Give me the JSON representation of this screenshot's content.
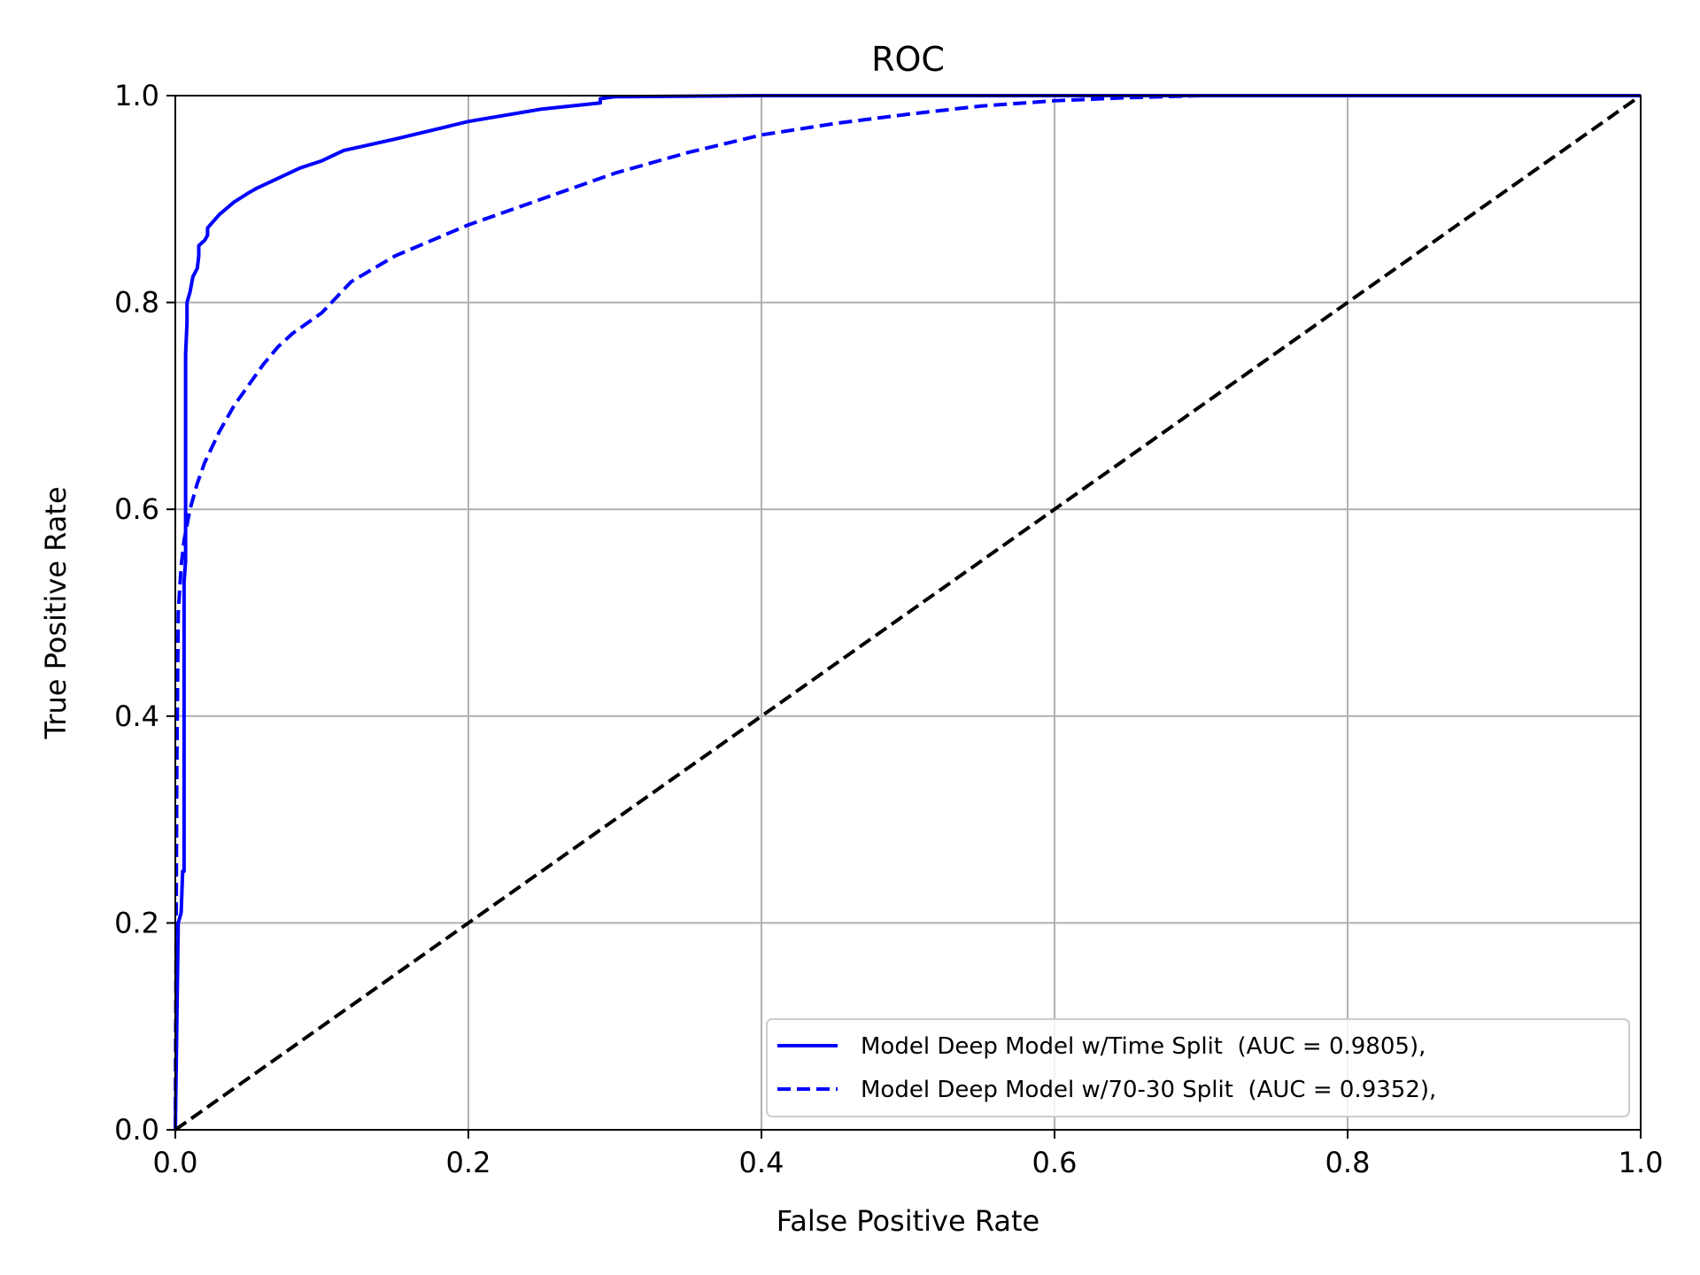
{
  "chart_data": {
    "type": "line",
    "title": "ROC",
    "xlabel": "False Positive Rate",
    "ylabel": "True Positive Rate",
    "xlim": [
      0.0,
      1.0
    ],
    "ylim": [
      0.0,
      1.0
    ],
    "xticks": [
      "0.0",
      "0.2",
      "0.4",
      "0.6",
      "0.8",
      "1.0"
    ],
    "yticks": [
      "0.0",
      "0.2",
      "0.4",
      "0.6",
      "0.8",
      "1.0"
    ],
    "grid": true,
    "legend_position": "lower-right",
    "series": [
      {
        "name": "Model Deep Model w/Time Split  (AUC = 0.9805),",
        "color": "#0000ff",
        "style": "solid",
        "x": [
          0.0,
          0.002,
          0.004,
          0.005,
          0.006,
          0.006,
          0.007,
          0.007,
          0.008,
          0.008,
          0.01,
          0.012,
          0.015,
          0.016,
          0.016,
          0.02,
          0.022,
          0.022,
          0.03,
          0.04,
          0.05,
          0.055,
          0.07,
          0.085,
          0.1,
          0.115,
          0.15,
          0.2,
          0.25,
          0.29,
          0.29,
          0.3,
          0.4,
          0.6,
          1.0
        ],
        "y": [
          0.0,
          0.2,
          0.21,
          0.25,
          0.25,
          0.53,
          0.55,
          0.75,
          0.78,
          0.8,
          0.81,
          0.825,
          0.833,
          0.845,
          0.855,
          0.86,
          0.865,
          0.872,
          0.885,
          0.897,
          0.906,
          0.91,
          0.92,
          0.93,
          0.937,
          0.947,
          0.958,
          0.975,
          0.987,
          0.993,
          0.997,
          0.999,
          1.0,
          1.0,
          1.0
        ]
      },
      {
        "name": "Model Deep Model w/70-30 Split  (AUC = 0.9352),",
        "color": "#0000ff",
        "style": "dashed",
        "x": [
          0.0,
          0.001,
          0.002,
          0.004,
          0.006,
          0.01,
          0.015,
          0.02,
          0.03,
          0.04,
          0.05,
          0.06,
          0.07,
          0.08,
          0.1,
          0.12,
          0.15,
          0.2,
          0.25,
          0.3,
          0.35,
          0.4,
          0.45,
          0.5,
          0.55,
          0.6,
          0.65,
          0.7,
          0.8,
          1.0
        ],
        "y": [
          0.0,
          0.35,
          0.5,
          0.545,
          0.57,
          0.6,
          0.625,
          0.645,
          0.675,
          0.7,
          0.72,
          0.74,
          0.757,
          0.77,
          0.79,
          0.82,
          0.845,
          0.875,
          0.9,
          0.925,
          0.945,
          0.962,
          0.973,
          0.982,
          0.99,
          0.995,
          0.998,
          1.0,
          1.0,
          1.0
        ]
      },
      {
        "name": "",
        "color": "#000000",
        "style": "dashed",
        "x": [
          0.0,
          1.0
        ],
        "y": [
          0.0,
          1.0
        ]
      }
    ]
  }
}
